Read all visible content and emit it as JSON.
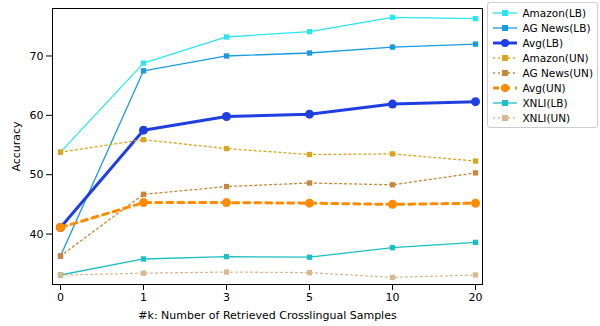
{
  "chart_data": {
    "type": "line",
    "x_label": "#k: Number of Retrieved Crosslingual Samples",
    "y_label": "Accuracy",
    "categories": [
      "0",
      "1",
      "3",
      "5",
      "10",
      "20"
    ],
    "ylim": [
      31.5,
      78
    ],
    "yticks": [
      40,
      50,
      60,
      70
    ],
    "grid": false,
    "legend": "upper right",
    "series": [
      {
        "name": "Amazon(LB)",
        "color": "#2be5f0",
        "marker": "square",
        "line_style": "solid",
        "values": [
          53.8,
          68.8,
          73.2,
          74.1,
          76.5,
          76.3
        ]
      },
      {
        "name": "AG News(LB)",
        "color": "#1a9be0",
        "marker": "square",
        "line_style": "solid",
        "values": [
          36.3,
          67.5,
          70.0,
          70.5,
          71.5,
          72.0
        ]
      },
      {
        "name": "Avg(LB)",
        "color": "#1f3fe0",
        "marker": "circle",
        "line_style": "solid",
        "values": [
          41.1,
          57.5,
          59.8,
          60.2,
          61.9,
          62.3
        ]
      },
      {
        "name": "Amazon(UN)",
        "color": "#daa520",
        "marker": "square",
        "line_style": "dotted",
        "values": [
          53.8,
          55.9,
          54.4,
          53.4,
          53.5,
          52.3
        ]
      },
      {
        "name": "AG News(UN)",
        "color": "#c8873c",
        "marker": "square",
        "line_style": "dotted",
        "values": [
          36.3,
          46.7,
          48.0,
          48.6,
          48.3,
          50.3
        ]
      },
      {
        "name": "Avg(UN)",
        "color": "#ff8c00",
        "marker": "circle",
        "line_style": "dotted",
        "values": [
          41.1,
          45.3,
          45.3,
          45.2,
          45.0,
          45.2
        ]
      },
      {
        "name": "XNLI(LB)",
        "color": "#1cbfc4",
        "marker": "square",
        "line_style": "solid",
        "values": [
          33.1,
          35.8,
          36.2,
          36.1,
          37.7,
          38.6
        ]
      },
      {
        "name": "XNLI(UN)",
        "color": "#d9b88f",
        "marker": "square",
        "line_style": "dotted",
        "values": [
          33.1,
          33.4,
          33.6,
          33.5,
          32.7,
          33.1
        ]
      }
    ]
  }
}
